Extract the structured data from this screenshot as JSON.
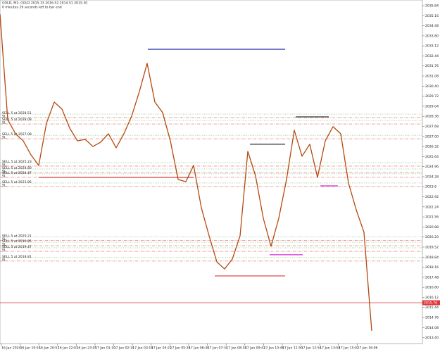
{
  "chart_data": {
    "type": "line",
    "header": "GOLD, M1: GOLD  2015.33 2016.52 2014.51 2015.30",
    "subheader": "0 minutes 29 seconds left to bar end",
    "values": [
      2035.27,
      2028.13,
      2027.18,
      2026.7,
      2025.75,
      2025.04,
      2027.89,
      2029.32,
      2028.85,
      2027.56,
      2026.7,
      2026.8,
      2026.32,
      2026.61,
      2027.18,
      2026.23,
      2027.18,
      2028.37,
      2030.03,
      2031.94,
      2029.32,
      2028.61,
      2026.7,
      2024.09,
      2023.94,
      2025.04,
      2022.18,
      2020.28,
      2018.52,
      2018.04,
      2018.71,
      2020.28,
      2025.99,
      2024.33,
      2021.47,
      2019.57,
      2021.47,
      2024.09,
      2027.42,
      2025.66,
      2026.47,
      2024.23,
      2026.7,
      2027.66,
      2027.18,
      2023.85,
      2022.04,
      2020.52,
      2013.86
    ],
    "color": "#b5480f",
    "ylim": [
      2013.0,
      2036.22
    ],
    "yticks": [
      2035.84,
      2035.16,
      2034.48,
      {
        "value": 2033.8,
        "label": "2033.80"
      },
      2033.12,
      2032.44,
      2031.76,
      2031.08,
      {
        "value": 2030.4,
        "label": "2030.40"
      },
      2029.72,
      2029.04,
      2028.36,
      2027.68,
      {
        "value": 2027,
        "label": "2027.00"
      },
      2026.32,
      2025.64,
      2024.96,
      2024.28,
      2023.6,
      2022.92,
      2022.24,
      2021.56,
      2020.88,
      {
        "value": 2020.2,
        "label": "2020.20"
      },
      2019.52,
      2018.84,
      2018.16,
      2017.48,
      {
        "value": 2016.8,
        "label": "2016.80"
      },
      2016.12,
      2015.44,
      2014.76,
      2014.08,
      {
        "value": 2013.4,
        "label": "2013.40"
      }
    ],
    "xticks": [
      "16 Jan 2024",
      "16 Jan 19:53",
      "16 Jan 20:57",
      "16 Jan 22:01",
      "16 Jan 23:05",
      "17 Jan 01:10",
      "17 Jan 02:14",
      "17 Jan 03:18",
      "17 Jan 04:22",
      "17 Jan 05:26",
      "17 Jan 06:30",
      "17 Jan 07:34",
      "17 Jan 08:38",
      "17 Jan 09:42",
      "17 Jan 10:46",
      "17 Jan 11:50",
      "17 Jan 12:54",
      "17 Jan 13:58",
      "17 Jan 15:02",
      "17 Jan 16:06"
    ],
    "levels": [
      {
        "value": 2032.89,
        "color": "#1a2aa8"
      },
      {
        "value": 2028.32,
        "color": "#333333"
      },
      {
        "value": 2026.47,
        "color": "#333333"
      },
      {
        "value": 2024.23,
        "color": "#e0383a"
      },
      {
        "value": 2023.66,
        "color": "#d92bd9"
      },
      {
        "value": 2019.0,
        "color": "#d92bd9"
      },
      {
        "value": 2017.57,
        "color": "#e0383a"
      }
    ],
    "sl_label": "SL",
    "orders": [
      {
        "label": "SELL 5 at 2028.51",
        "value": 2028.51
      },
      {
        "label": "SELL 5 at 2028.08",
        "value": 2028.08
      },
      {
        "label": "SELL 5 at 2027.08",
        "value": 2027.08
      },
      {
        "label": "SELL 5 at 2025.23",
        "value": 2025.23
      },
      {
        "label": "SELL 5 at 2024.80",
        "value": 2024.8
      },
      {
        "label": "SELL 5 at 2024.47",
        "value": 2024.47
      },
      {
        "label": "SELL 5 at 2023.85",
        "value": 2023.85
      },
      {
        "label": "SELL 5 at 2020.21",
        "value": 2020.21
      },
      {
        "label": "SELL 5 at 2019.85",
        "value": 2019.85
      },
      {
        "label": "SELL 5 at 2019.47",
        "value": 2019.47
      },
      {
        "label": "SELL 5 at 2018.81",
        "value": 2018.81
      }
    ],
    "bid": 2015.76,
    "bid_color": "#e0383a"
  }
}
